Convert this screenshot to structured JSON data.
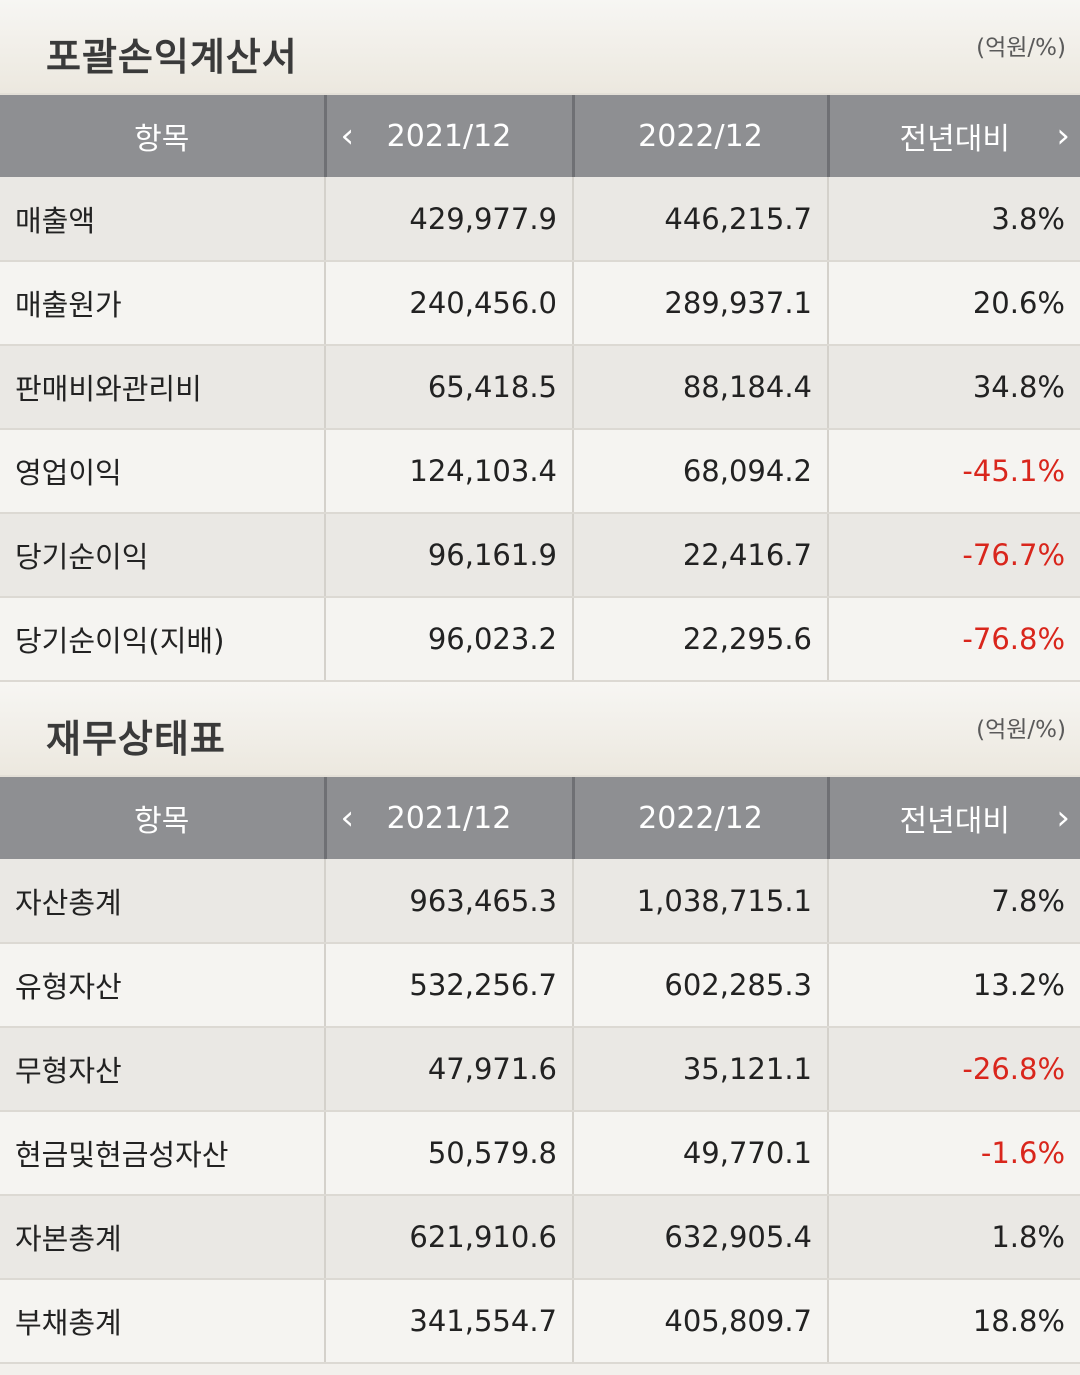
{
  "income": {
    "title": "포괄손익계산서",
    "unit": "(억원/%)",
    "headers": [
      "항목",
      "2021/12",
      "2022/12",
      "전년대비"
    ],
    "rows": [
      {
        "item": "매출액",
        "y2021": "429,977.9",
        "y2022": "446,215.7",
        "yoy": "3.8%"
      },
      {
        "item": "매출원가",
        "y2021": "240,456.0",
        "y2022": "289,937.1",
        "yoy": "20.6%"
      },
      {
        "item": "판매비와관리비",
        "y2021": "65,418.5",
        "y2022": "88,184.4",
        "yoy": "34.8%"
      },
      {
        "item": "영업이익",
        "y2021": "124,103.4",
        "y2022": "68,094.2",
        "yoy": "-45.1%"
      },
      {
        "item": "당기순이익",
        "y2021": "96,161.9",
        "y2022": "22,416.7",
        "yoy": "-76.7%"
      },
      {
        "item": "당기순이익(지배)",
        "y2021": "96,023.2",
        "y2022": "22,295.6",
        "yoy": "-76.8%"
      }
    ]
  },
  "balance": {
    "title": "재무상태표",
    "unit": "(억원/%)",
    "headers": [
      "항목",
      "2021/12",
      "2022/12",
      "전년대비"
    ],
    "rows": [
      {
        "item": "자산총계",
        "y2021": "963,465.3",
        "y2022": "1,038,715.1",
        "yoy": "7.8%"
      },
      {
        "item": "유형자산",
        "y2021": "532,256.7",
        "y2022": "602,285.3",
        "yoy": "13.2%"
      },
      {
        "item": "무형자산",
        "y2021": "47,971.6",
        "y2022": "35,121.1",
        "yoy": "-26.8%"
      },
      {
        "item": "현금및현금성자산",
        "y2021": "50,579.8",
        "y2022": "49,770.1",
        "yoy": "-1.6%"
      },
      {
        "item": "자본총계",
        "y2021": "621,910.6",
        "y2022": "632,905.4",
        "yoy": "1.8%"
      },
      {
        "item": "부채총계",
        "y2021": "341,554.7",
        "y2022": "405,809.7",
        "yoy": "18.8%"
      }
    ]
  },
  "nav": {
    "prev_icon": "‹",
    "next_icon": "›"
  },
  "colors": {
    "negative": "#d9261c",
    "header_bg": "#8e8f92"
  }
}
